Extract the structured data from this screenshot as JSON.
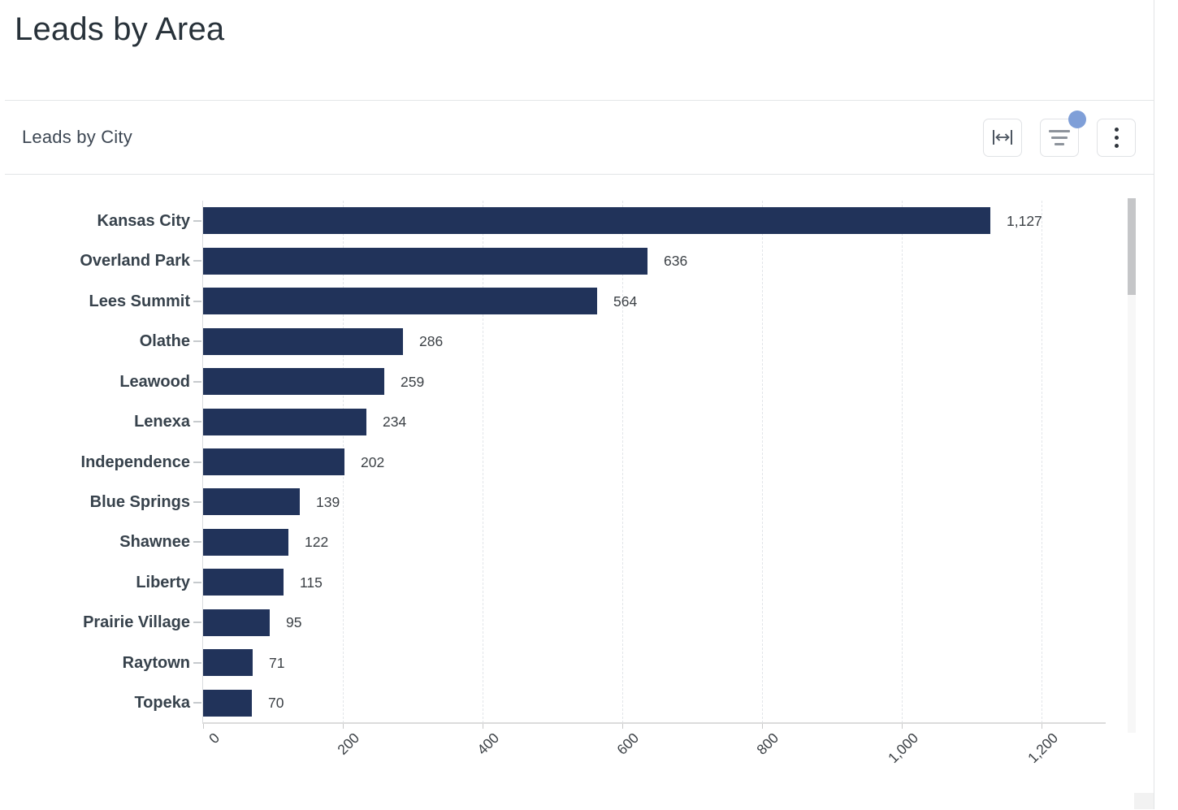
{
  "page": {
    "title": "Leads by Area"
  },
  "card": {
    "title": "Leads by City",
    "toolbar": {
      "expand_button": "expand-horizontal",
      "filter_button": "filter",
      "menu_button": "more-options",
      "filter_badge_color": "#7f9fd8"
    }
  },
  "colors": {
    "bar": "#21335a",
    "badge": "#7f9fd8",
    "title_text": "#28323a"
  },
  "chart_data": {
    "type": "bar",
    "orientation": "horizontal",
    "title": "Leads by City",
    "categories": [
      "Kansas City",
      "Overland Park",
      "Lees Summit",
      "Olathe",
      "Leawood",
      "Lenexa",
      "Independence",
      "Blue Springs",
      "Shawnee",
      "Liberty",
      "Prairie Village",
      "Raytown",
      "Topeka"
    ],
    "values": [
      1127,
      636,
      564,
      286,
      259,
      234,
      202,
      139,
      122,
      115,
      95,
      71,
      70
    ],
    "value_labels": [
      "1,127",
      "636",
      "564",
      "286",
      "259",
      "234",
      "202",
      "139",
      "122",
      "115",
      "95",
      "71",
      "70"
    ],
    "xlabel": "",
    "ylabel": "",
    "xlim": [
      0,
      1200
    ],
    "x_ticks": [
      0,
      200,
      400,
      600,
      800,
      1000,
      1200
    ],
    "x_tick_labels": [
      "0",
      "200",
      "400",
      "600",
      "800",
      "1,000",
      "1,200"
    ],
    "grid": "vertical-dashed",
    "legend": "none",
    "bar_color": "#21335a"
  }
}
